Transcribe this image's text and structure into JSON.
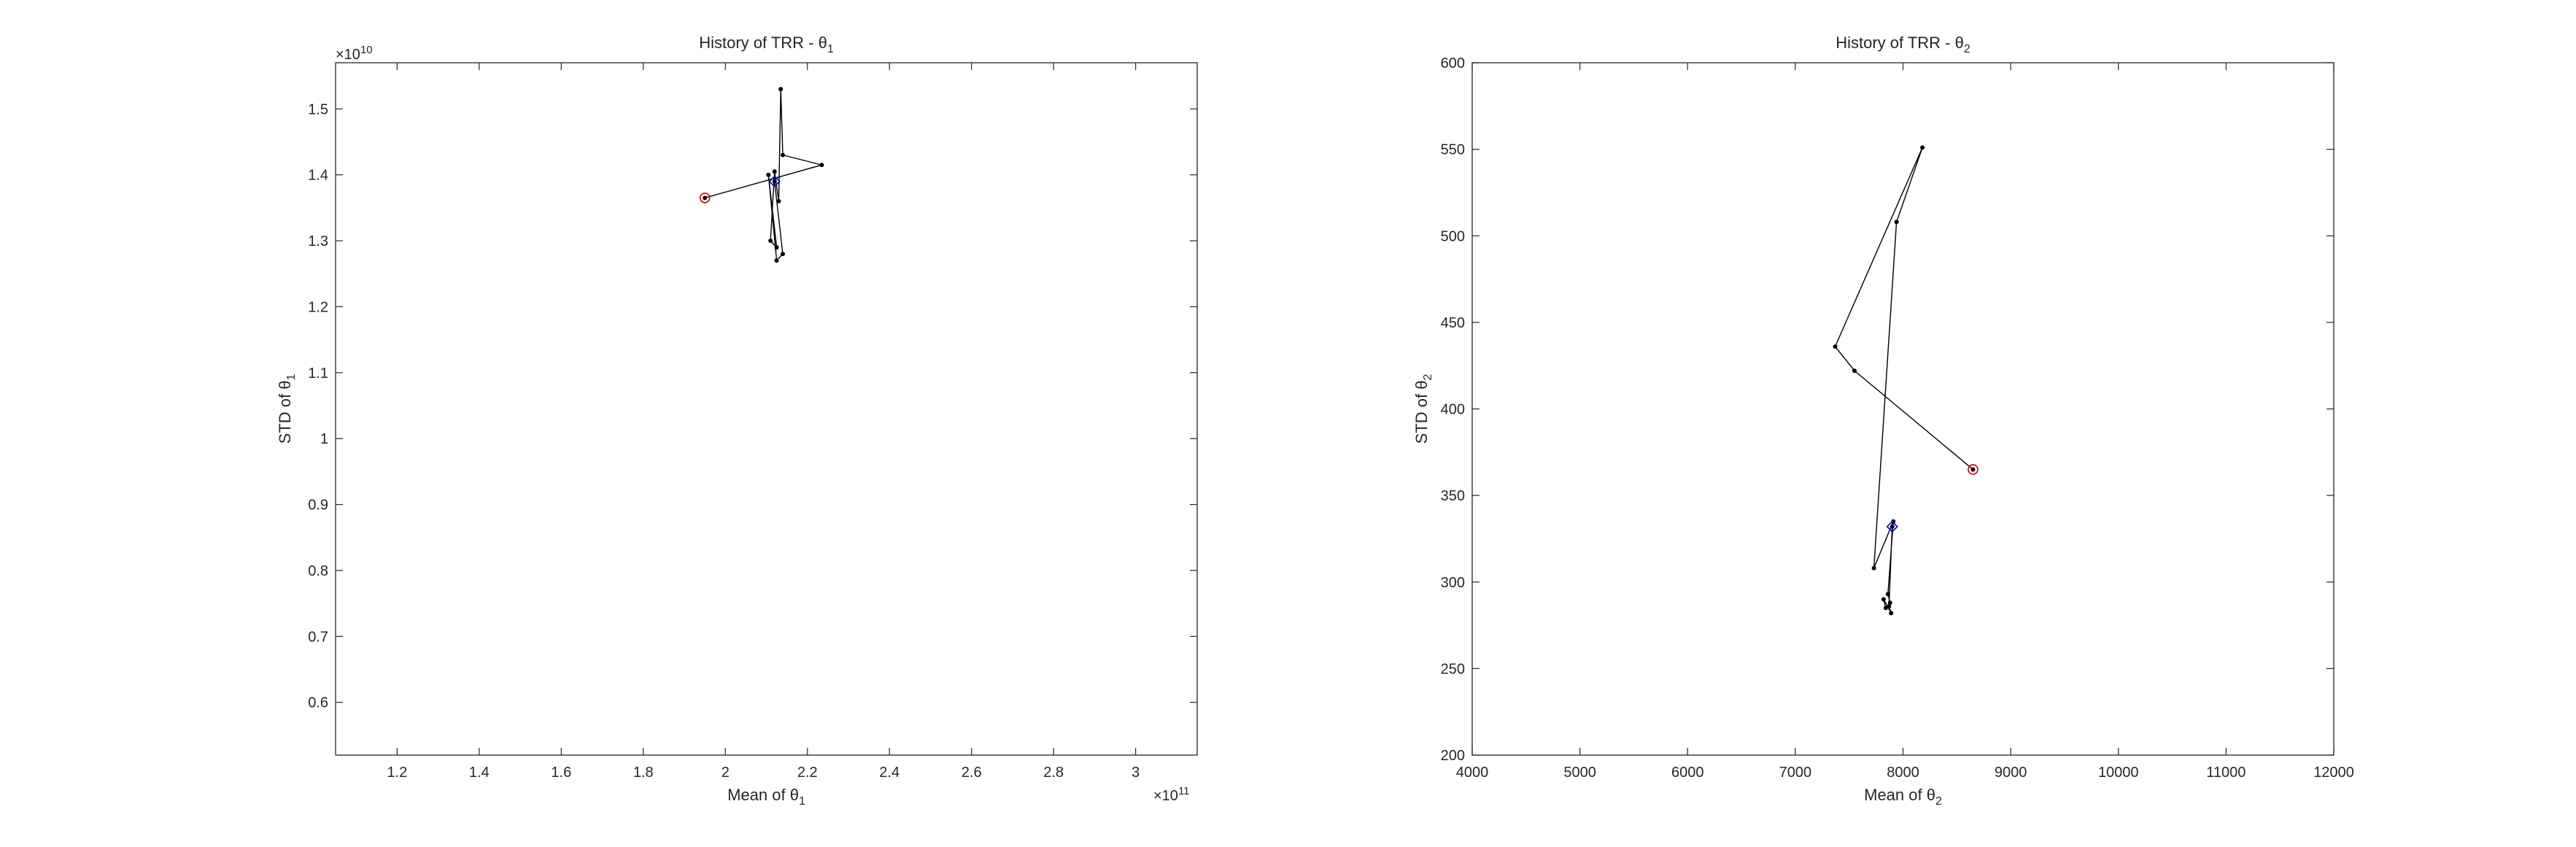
{
  "chart_data": [
    {
      "type": "line",
      "title": "History of TRR - θ",
      "title_subscript": "1",
      "xlabel": "Mean of θ",
      "xlabel_subscript": "1",
      "ylabel": "STD of θ",
      "ylabel_subscript": "1",
      "x_exponent": "×10",
      "x_exponent_power": "11",
      "y_exponent": "×10",
      "y_exponent_power": "10",
      "xlim": [
        1.05,
        3.15
      ],
      "ylim": [
        0.52,
        1.57
      ],
      "xticks": [
        1.2,
        1.4,
        1.6,
        1.8,
        2.0,
        2.2,
        2.4,
        2.6,
        2.8,
        3.0
      ],
      "xtick_labels": [
        "1.2",
        "1.4",
        "1.6",
        "1.8",
        "2",
        "2.2",
        "2.4",
        "2.6",
        "2.8",
        "3"
      ],
      "yticks": [
        0.6,
        0.7,
        0.8,
        0.9,
        1.0,
        1.1,
        1.2,
        1.3,
        1.4,
        1.5
      ],
      "ytick_labels": [
        "0.6",
        "0.7",
        "0.8",
        "0.9",
        "1",
        "1.1",
        "1.2",
        "1.3",
        "1.4",
        "1.5"
      ],
      "grid": false,
      "series": [
        {
          "color": "#000000",
          "x": [
            1.95,
            2.235,
            2.14,
            2.135,
            2.13,
            2.12,
            2.11,
            2.125,
            2.105,
            2.125,
            2.14,
            2.12
          ],
          "y": [
            1.365,
            1.415,
            1.43,
            1.53,
            1.36,
            1.405,
            1.3,
            1.29,
            1.4,
            1.27,
            1.28,
            1.39
          ]
        }
      ],
      "start_marker": {
        "x": 1.95,
        "y": 1.365,
        "color": "#cc0000"
      },
      "end_marker": {
        "x": 2.12,
        "y": 1.39,
        "color": "#0000cc"
      }
    },
    {
      "type": "line",
      "title": "History of TRR - θ",
      "title_subscript": "2",
      "xlabel": "Mean of θ",
      "xlabel_subscript": "2",
      "ylabel": "STD of θ",
      "ylabel_subscript": "2",
      "xlim": [
        4000,
        12000
      ],
      "ylim": [
        200,
        600
      ],
      "xticks": [
        4000,
        5000,
        6000,
        7000,
        8000,
        9000,
        10000,
        11000,
        12000
      ],
      "xtick_labels": [
        "4000",
        "5000",
        "6000",
        "7000",
        "8000",
        "9000",
        "10000",
        "11000",
        "12000"
      ],
      "yticks": [
        200,
        250,
        300,
        350,
        400,
        450,
        500,
        550,
        600
      ],
      "ytick_labels": [
        "200",
        "250",
        "300",
        "350",
        "400",
        "450",
        "500",
        "550",
        "600"
      ],
      "grid": false,
      "series": [
        {
          "color": "#000000",
          "x": [
            8650,
            7550,
            7370,
            8180,
            7940,
            7730,
            7910,
            7860,
            7880,
            7840,
            7820,
            7890,
            7870,
            7900
          ],
          "y": [
            365,
            422,
            436,
            551,
            508,
            308,
            335,
            293,
            288,
            285,
            290,
            282,
            286,
            332
          ]
        }
      ],
      "start_marker": {
        "x": 8650,
        "y": 365,
        "color": "#cc0000"
      },
      "end_marker": {
        "x": 7900,
        "y": 332,
        "color": "#0000cc"
      }
    }
  ]
}
